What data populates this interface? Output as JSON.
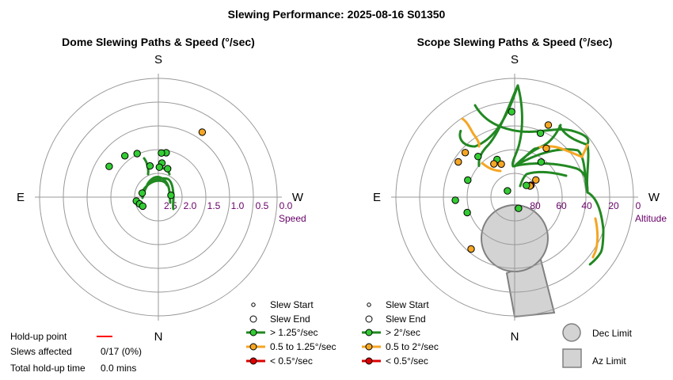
{
  "title": "Slewing Performance: 2025-08-16 S01350",
  "dome": {
    "title": "Dome Slewing Paths & Speed (°/sec)",
    "compass": {
      "top": "S",
      "bottom": "N",
      "left": "E",
      "right": "W"
    },
    "radial_ticks": [
      "2.5",
      "2.0",
      "1.5",
      "1.0",
      "0.5",
      "0.0"
    ],
    "radial_label": "Speed",
    "legend": {
      "slew_start": "Slew Start",
      "slew_end": "Slew End",
      "fast": "> 1.25°/sec",
      "medium": "0.5 to 1.25°/sec",
      "slow": "< 0.5°/sec"
    }
  },
  "scope": {
    "title": "Scope Slewing Paths & Speed (°/sec)",
    "compass": {
      "top": "S",
      "bottom": "N",
      "left": "E",
      "right": "W"
    },
    "radial_ticks": [
      "80",
      "60",
      "40",
      "20",
      "0"
    ],
    "radial_label": "Altitude",
    "legend": {
      "slew_start": "Slew Start",
      "slew_end": "Slew End",
      "fast": "> 2°/sec",
      "medium": "0.5 to 2°/sec",
      "slow": "< 0.5°/sec"
    },
    "limits": {
      "dec": "Dec Limit",
      "az": "Az Limit"
    }
  },
  "stats": {
    "holdup_label": "Hold-up point",
    "slews_label": "Slews affected",
    "slews_value": "0/17 (0%)",
    "total_label": "Total hold-up time",
    "total_value": "0.0 mins"
  },
  "colors": {
    "fast": "#33cc33",
    "fast_line": "#228822",
    "medium": "#f5a623",
    "slow": "#dd0000",
    "holdup": "#ff0000",
    "tick_text": "#660066",
    "limit_fill": "#d3d3d3"
  },
  "chart_data": [
    {
      "type": "scatter",
      "title": "Dome Slewing Paths & Speed (°/sec)",
      "projection": "polar",
      "radial_label": "Speed",
      "radial_range": [
        2.5,
        0.0
      ],
      "radial_ticks": [
        2.5,
        2.0,
        1.5,
        1.0,
        0.5,
        0.0
      ],
      "points": [
        {
          "az": 214,
          "speed": 0.85,
          "class": "medium"
        },
        {
          "az": 190,
          "speed": 1.55,
          "class": "fast"
        },
        {
          "az": 184,
          "speed": 1.57,
          "class": "fast"
        },
        {
          "az": 154,
          "speed": 1.48,
          "class": "fast"
        },
        {
          "az": 141,
          "speed": 1.38,
          "class": "fast"
        },
        {
          "az": 122,
          "speed": 1.28,
          "class": "fast"
        },
        {
          "az": 186,
          "speed": 1.78,
          "class": "fast"
        },
        {
          "az": 182,
          "speed": 1.87,
          "class": "fast"
        },
        {
          "az": 198,
          "speed": 1.87,
          "class": "fast"
        },
        {
          "az": 165,
          "speed": 1.82,
          "class": "fast"
        },
        {
          "az": 104,
          "speed": 2.15,
          "class": "fast"
        },
        {
          "az": 80,
          "speed": 2.03,
          "class": "fast"
        },
        {
          "az": 70,
          "speed": 2.08,
          "class": "fast"
        },
        {
          "az": 60,
          "speed": 2.12,
          "class": "fast"
        },
        {
          "az": 262,
          "speed": 2.23,
          "class": "fast"
        }
      ]
    },
    {
      "type": "scatter",
      "title": "Scope Slewing Paths & Speed (°/sec)",
      "projection": "polar",
      "radial_label": "Altitude",
      "radial_range": [
        90,
        0
      ],
      "radial_ticks": [
        80,
        60,
        40,
        20,
        0
      ],
      "points": [
        {
          "az": 178,
          "alt": 18,
          "class": "fast"
        },
        {
          "az": 202,
          "alt": 32,
          "class": "fast"
        },
        {
          "az": 205,
          "alt": 23,
          "class": "medium"
        },
        {
          "az": 213,
          "alt": 41,
          "class": "medium"
        },
        {
          "az": 217,
          "alt": 53,
          "class": "fast"
        },
        {
          "az": 231,
          "alt": 67,
          "class": "medium"
        },
        {
          "az": 234,
          "alt": 73,
          "class": "slow"
        },
        {
          "az": 234,
          "alt": 74,
          "class": "medium"
        },
        {
          "az": 225,
          "alt": 76,
          "class": "fast"
        },
        {
          "az": 155,
          "alt": 55,
          "class": "fast"
        },
        {
          "az": 148,
          "alt": 57,
          "class": "medium"
        },
        {
          "az": 138,
          "alt": 44,
          "class": "fast"
        },
        {
          "az": 132,
          "alt": 34,
          "class": "medium"
        },
        {
          "az": 158,
          "alt": 60,
          "class": "medium"
        },
        {
          "az": 110,
          "alt": 48,
          "class": "fast"
        },
        {
          "az": 122,
          "alt": 34,
          "class": "medium"
        },
        {
          "az": 87,
          "alt": 40,
          "class": "fast"
        },
        {
          "az": 72,
          "alt": 48,
          "class": "fast"
        },
        {
          "az": 40,
          "alt": 33,
          "class": "medium"
        },
        {
          "az": 131,
          "alt": 82,
          "class": "fast"
        },
        {
          "az": 341,
          "alt": 80,
          "class": "fast"
        }
      ]
    }
  ]
}
